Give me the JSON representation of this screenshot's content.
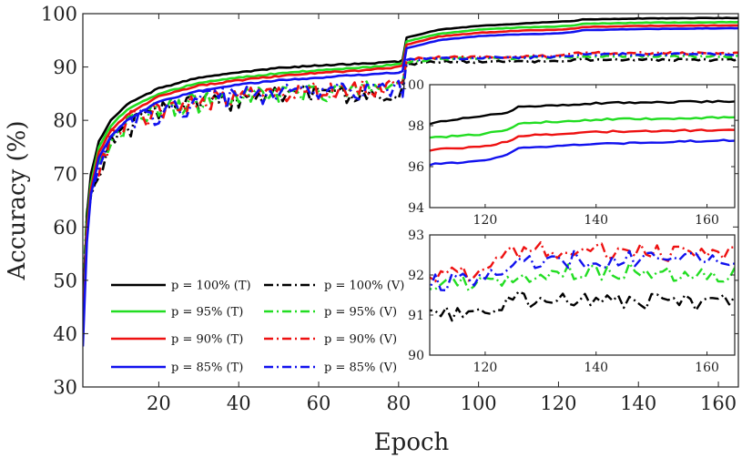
{
  "chart_data": {
    "type": "line",
    "xlabel": "Epoch",
    "ylabel": "Accuracy (%)",
    "xlim": [
      1,
      165
    ],
    "ylim": [
      30,
      100
    ],
    "xticks": [
      20,
      40,
      60,
      80,
      100,
      120,
      140,
      160
    ],
    "yticks": [
      30,
      40,
      50,
      60,
      70,
      80,
      90,
      100
    ],
    "legend_location": "bottom-left",
    "colors": {
      "p100": "#000000",
      "p95": "#22dd22",
      "p90": "#ee1111",
      "p85": "#1111ee"
    },
    "series": [
      {
        "name": "p = 100% (T)",
        "p": "100",
        "set": "T",
        "color": "#000000",
        "dash": "solid",
        "anchors": [
          [
            1,
            42
          ],
          [
            2,
            62
          ],
          [
            3,
            70
          ],
          [
            5,
            76
          ],
          [
            8,
            80
          ],
          [
            12,
            83
          ],
          [
            20,
            86
          ],
          [
            30,
            88
          ],
          [
            40,
            89
          ],
          [
            50,
            89.8
          ],
          [
            60,
            90.3
          ],
          [
            70,
            90.6
          ],
          [
            80,
            91
          ],
          [
            81,
            91.3
          ],
          [
            82,
            95.5
          ],
          [
            90,
            97
          ],
          [
            100,
            97.7
          ],
          [
            110,
            98.1
          ],
          [
            120,
            98.5
          ],
          [
            124,
            98.6
          ],
          [
            126,
            98.9
          ],
          [
            140,
            99.1
          ],
          [
            165,
            99.2
          ]
        ]
      },
      {
        "name": "p = 95% (T)",
        "p": "95",
        "set": "T",
        "color": "#22dd22",
        "dash": "solid",
        "anchors": [
          [
            1,
            40
          ],
          [
            2,
            60
          ],
          [
            3,
            68
          ],
          [
            5,
            75
          ],
          [
            8,
            79
          ],
          [
            12,
            82
          ],
          [
            20,
            85
          ],
          [
            30,
            87
          ],
          [
            40,
            88
          ],
          [
            50,
            88.8
          ],
          [
            60,
            89.4
          ],
          [
            70,
            89.8
          ],
          [
            80,
            90.5
          ],
          [
            81,
            90.8
          ],
          [
            82,
            94.8
          ],
          [
            90,
            96.2
          ],
          [
            100,
            97
          ],
          [
            110,
            97.4
          ],
          [
            120,
            97.6
          ],
          [
            124,
            97.8
          ],
          [
            126,
            98.1
          ],
          [
            140,
            98.3
          ],
          [
            165,
            98.4
          ]
        ]
      },
      {
        "name": "p = 90% (T)",
        "p": "90",
        "set": "T",
        "color": "#ee1111",
        "dash": "solid",
        "anchors": [
          [
            1,
            39
          ],
          [
            2,
            59
          ],
          [
            3,
            67
          ],
          [
            5,
            74
          ],
          [
            8,
            78
          ],
          [
            12,
            81
          ],
          [
            20,
            84.5
          ],
          [
            30,
            86.5
          ],
          [
            40,
            87.5
          ],
          [
            50,
            88.3
          ],
          [
            60,
            88.9
          ],
          [
            70,
            89.3
          ],
          [
            80,
            90
          ],
          [
            81,
            90.3
          ],
          [
            82,
            94.2
          ],
          [
            90,
            95.7
          ],
          [
            100,
            96.4
          ],
          [
            110,
            96.8
          ],
          [
            120,
            97
          ],
          [
            124,
            97.2
          ],
          [
            126,
            97.5
          ],
          [
            140,
            97.7
          ],
          [
            165,
            97.8
          ]
        ]
      },
      {
        "name": "p = 85% (T)",
        "p": "85",
        "set": "T",
        "color": "#1111ee",
        "dash": "solid",
        "anchors": [
          [
            1,
            37.5
          ],
          [
            2,
            57
          ],
          [
            3,
            66
          ],
          [
            5,
            73
          ],
          [
            8,
            77
          ],
          [
            12,
            80
          ],
          [
            20,
            83.5
          ],
          [
            30,
            85.5
          ],
          [
            40,
            86.7
          ],
          [
            50,
            87.5
          ],
          [
            60,
            88
          ],
          [
            70,
            88.5
          ],
          [
            80,
            89
          ],
          [
            81,
            89.3
          ],
          [
            82,
            93.5
          ],
          [
            90,
            95
          ],
          [
            100,
            95.8
          ],
          [
            110,
            96.1
          ],
          [
            120,
            96.3
          ],
          [
            124,
            96.6
          ],
          [
            126,
            96.9
          ],
          [
            140,
            97.1
          ],
          [
            165,
            97.3
          ]
        ]
      },
      {
        "name": "p = 100% (V)",
        "p": "100",
        "set": "V",
        "color": "#000000",
        "dash": "dashdot",
        "anchors": [
          [
            1,
            44
          ],
          [
            2,
            60
          ],
          [
            3,
            66
          ],
          [
            5,
            70
          ],
          [
            8,
            76
          ],
          [
            12,
            79
          ],
          [
            20,
            82
          ],
          [
            30,
            83.5
          ],
          [
            40,
            84.5
          ],
          [
            50,
            85
          ],
          [
            60,
            85.3
          ],
          [
            70,
            85.5
          ],
          [
            80,
            85.7
          ],
          [
            81,
            86
          ],
          [
            82,
            90.5
          ],
          [
            90,
            91
          ],
          [
            100,
            91
          ],
          [
            110,
            91
          ],
          [
            120,
            91.1
          ],
          [
            122,
            91.2
          ],
          [
            124,
            91.4
          ],
          [
            140,
            91.4
          ],
          [
            165,
            91.3
          ]
        ]
      },
      {
        "name": "p = 95% (V)",
        "p": "95",
        "set": "V",
        "color": "#22dd22",
        "dash": "dashdot",
        "anchors": [
          [
            1,
            48
          ],
          [
            2,
            63
          ],
          [
            3,
            68
          ],
          [
            5,
            72
          ],
          [
            8,
            77
          ],
          [
            12,
            80
          ],
          [
            20,
            82.5
          ],
          [
            30,
            84
          ],
          [
            40,
            85
          ],
          [
            50,
            85.5
          ],
          [
            60,
            85.8
          ],
          [
            70,
            86
          ],
          [
            80,
            86.3
          ],
          [
            81,
            86.5
          ],
          [
            82,
            91
          ],
          [
            90,
            91.5
          ],
          [
            100,
            91.6
          ],
          [
            110,
            91.7
          ],
          [
            120,
            91.8
          ],
          [
            122,
            91.9
          ],
          [
            124,
            92
          ],
          [
            140,
            92.1
          ],
          [
            165,
            92
          ]
        ]
      },
      {
        "name": "p = 90% (V)",
        "p": "90",
        "set": "V",
        "color": "#ee1111",
        "dash": "dashdot",
        "anchors": [
          [
            1,
            46
          ],
          [
            2,
            61
          ],
          [
            3,
            67
          ],
          [
            5,
            71
          ],
          [
            8,
            77
          ],
          [
            12,
            80
          ],
          [
            20,
            82.5
          ],
          [
            30,
            84
          ],
          [
            40,
            85
          ],
          [
            50,
            85.6
          ],
          [
            60,
            86
          ],
          [
            70,
            86.3
          ],
          [
            80,
            86.6
          ],
          [
            81,
            86.8
          ],
          [
            82,
            91.5
          ],
          [
            90,
            91.8
          ],
          [
            100,
            91.8
          ],
          [
            110,
            92
          ],
          [
            120,
            92.1
          ],
          [
            122,
            92.3
          ],
          [
            124,
            92.6
          ],
          [
            140,
            92.6
          ],
          [
            165,
            92.5
          ]
        ]
      },
      {
        "name": "p = 85% (V)",
        "p": "85",
        "set": "V",
        "color": "#1111ee",
        "dash": "dashdot",
        "anchors": [
          [
            1,
            45
          ],
          [
            2,
            60
          ],
          [
            3,
            66
          ],
          [
            5,
            71
          ],
          [
            8,
            76
          ],
          [
            12,
            79.5
          ],
          [
            20,
            82
          ],
          [
            30,
            84
          ],
          [
            40,
            85
          ],
          [
            50,
            85.5
          ],
          [
            60,
            85.8
          ],
          [
            70,
            86.1
          ],
          [
            80,
            86.4
          ],
          [
            81,
            86.6
          ],
          [
            82,
            91.3
          ],
          [
            90,
            91.6
          ],
          [
            100,
            91.7
          ],
          [
            110,
            91.8
          ],
          [
            120,
            91.9
          ],
          [
            122,
            92
          ],
          [
            124,
            92.3
          ],
          [
            140,
            92.4
          ],
          [
            165,
            92.4
          ]
        ]
      }
    ],
    "insets": [
      {
        "name": "training-inset",
        "set": "T",
        "xlim": [
          110,
          165
        ],
        "ylim": [
          94,
          100
        ],
        "xticks": [
          120,
          140,
          160
        ],
        "yticks": [
          94,
          96,
          98,
          100
        ]
      },
      {
        "name": "validation-inset",
        "set": "V",
        "xlim": [
          110,
          165
        ],
        "ylim": [
          90,
          93
        ],
        "xticks": [
          120,
          140,
          160
        ],
        "yticks": [
          90,
          91,
          92,
          93
        ]
      }
    ]
  }
}
